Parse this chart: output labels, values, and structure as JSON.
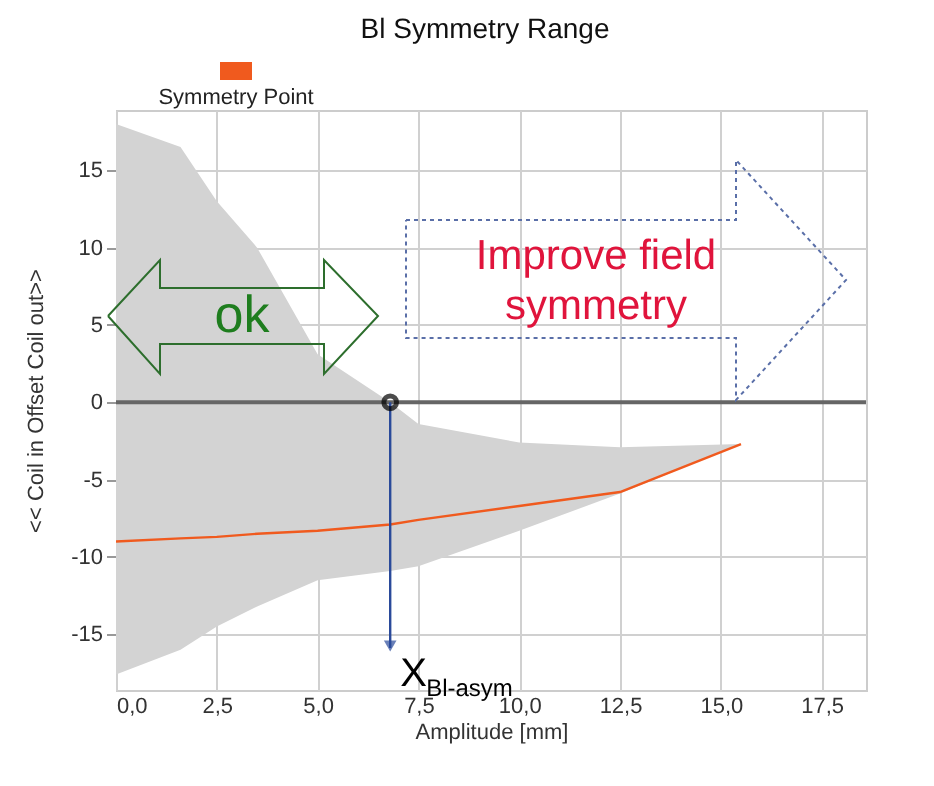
{
  "chart_data": {
    "type": "line",
    "title": "Bl Symmetry Range",
    "xlabel": "Amplitude [mm]",
    "ylabel": "<< Coil in      Offset      Coil out>>",
    "series": [
      {
        "name": "Symmetry Point",
        "color": "#f05a1e",
        "x": [
          0,
          1.6,
          2.5,
          3.5,
          5,
          6.8,
          7.5,
          10,
          12.5,
          15.5
        ],
        "values": [
          -9.0,
          -8.8,
          -8.7,
          -8.5,
          -8.3,
          -7.9,
          -7.6,
          -6.7,
          -5.8,
          -2.7
        ],
        "lower": [
          -17.6,
          -16.0,
          -14.5,
          -13.2,
          -11.5,
          -10.9,
          -10.6,
          -8.3,
          -5.9,
          -2.7
        ],
        "upper": [
          18.0,
          16.5,
          13.0,
          10.0,
          3.1,
          0.0,
          -1.4,
          -2.6,
          -2.9,
          -2.7
        ]
      }
    ],
    "xlim": [
      0,
      18.6
    ],
    "ylim": [
      -18.6,
      18.9
    ],
    "xticks": [
      {
        "value": 0,
        "label": "0,0"
      },
      {
        "value": 2.5,
        "label": "2,5"
      },
      {
        "value": 5,
        "label": "5,0"
      },
      {
        "value": 7.5,
        "label": "7,5"
      },
      {
        "value": 10,
        "label": "10,0"
      },
      {
        "value": 12.5,
        "label": "12,5"
      },
      {
        "value": 15,
        "label": "15,0"
      },
      {
        "value": 17.5,
        "label": "17,5"
      }
    ],
    "yticks": [
      -15,
      -10,
      -5,
      0,
      5,
      10,
      15
    ],
    "ref_lines": [
      {
        "axis": "y",
        "value": 0,
        "color": "#666666"
      }
    ],
    "annotations": [
      "ok",
      "Improve field symmetry",
      {
        "text": "X$_{Bl-asym}$",
        "x": 6.8,
        "y": 0
      }
    ],
    "grid": true,
    "legend": "top",
    "line_style": "solid",
    "marker": "none"
  }
}
